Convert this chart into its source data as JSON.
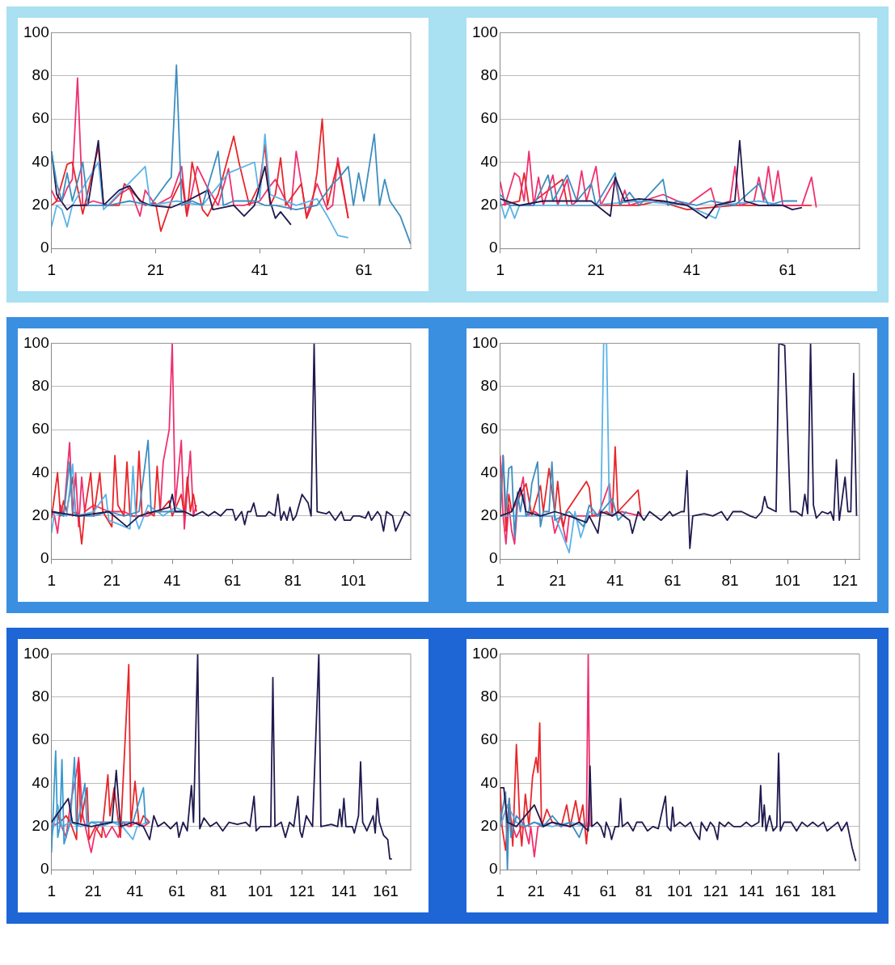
{
  "chart_data": [
    {
      "type": "line",
      "xlim": [
        1,
        70
      ],
      "xticks": [
        1,
        21,
        41,
        61
      ],
      "ylim": [
        0,
        100
      ],
      "yticks": [
        0,
        20,
        40,
        60,
        80,
        100
      ],
      "grid": "y",
      "marker": "none",
      "legend": false,
      "series": [
        {
          "color": "#3d8ebf",
          "x": [
            1,
            2,
            3,
            4,
            5,
            7,
            8,
            12,
            16,
            20,
            23,
            24,
            25,
            26,
            28,
            30,
            33,
            34,
            36,
            40,
            42,
            44,
            48,
            52,
            55,
            56,
            58,
            59,
            60,
            61,
            63,
            64,
            65,
            66,
            68,
            70
          ],
          "values": [
            45,
            30,
            22,
            35,
            22,
            40,
            20,
            20,
            22,
            20,
            30,
            33,
            85,
            20,
            22,
            20,
            45,
            20,
            22,
            22,
            20,
            20,
            18,
            20,
            30,
            32,
            38,
            20,
            35,
            22,
            53,
            20,
            32,
            22,
            15,
            2
          ]
        },
        {
          "color": "#1f1a4f",
          "x": [
            1,
            2,
            4,
            5,
            8,
            10,
            11,
            14,
            16,
            18,
            20,
            24,
            27,
            31,
            32,
            36,
            38,
            40,
            42,
            43,
            44,
            45,
            47
          ],
          "values": [
            45,
            25,
            18,
            20,
            20,
            50,
            20,
            27,
            29,
            22,
            20,
            19,
            22,
            27,
            18,
            20,
            15,
            20,
            38,
            22,
            14,
            17,
            11
          ]
        },
        {
          "color": "#5ab4e8",
          "x": [
            1,
            2,
            3,
            4,
            5,
            10,
            11,
            19,
            20,
            25,
            30,
            35,
            40,
            41,
            42,
            43,
            48,
            52,
            54,
            56,
            58
          ],
          "values": [
            10,
            20,
            18,
            10,
            20,
            40,
            18,
            38,
            20,
            22,
            20,
            35,
            40,
            23,
            53,
            25,
            20,
            23,
            15,
            6,
            5
          ]
        },
        {
          "color": "#e8262a",
          "x": [
            1,
            2,
            4,
            5,
            7,
            10,
            11,
            14,
            15,
            17,
            19,
            21,
            22,
            24,
            26,
            27,
            28,
            30,
            31,
            33,
            36,
            37,
            39,
            41,
            42,
            43,
            44,
            45,
            46,
            49,
            50,
            51,
            52,
            53,
            54,
            56,
            58
          ],
          "values": [
            20,
            22,
            39,
            40,
            16,
            47,
            20,
            20,
            30,
            25,
            20,
            21,
            8,
            22,
            32,
            15,
            40,
            18,
            15,
            25,
            52,
            40,
            20,
            30,
            48,
            20,
            25,
            42,
            20,
            30,
            14,
            20,
            35,
            60,
            20,
            40,
            14
          ]
        },
        {
          "color": "#f0306e",
          "x": [
            1,
            2,
            3,
            4,
            5,
            6,
            7,
            9,
            12,
            14,
            16,
            18,
            19,
            21,
            24,
            26,
            27,
            29,
            31,
            33,
            35,
            36,
            38,
            41,
            43,
            44,
            46,
            47,
            48,
            50,
            52,
            54,
            55,
            56,
            58
          ],
          "values": [
            27,
            22,
            22,
            28,
            32,
            79,
            20,
            22,
            20,
            25,
            28,
            15,
            27,
            20,
            24,
            38,
            15,
            38,
            28,
            20,
            37,
            20,
            20,
            22,
            29,
            32,
            22,
            18,
            45,
            15,
            30,
            18,
            20,
            42,
            14
          ]
        }
      ]
    },
    {
      "type": "line",
      "xlim": [
        1,
        76
      ],
      "xticks": [
        1,
        21,
        41,
        61
      ],
      "ylim": [
        0,
        100
      ],
      "yticks": [
        0,
        20,
        40,
        60,
        80,
        100
      ],
      "grid": "y",
      "marker": "none",
      "legend": false,
      "series": [
        {
          "color": "#1f1a4f",
          "x": [
            1,
            5,
            10,
            20,
            24,
            25,
            27,
            30,
            35,
            40,
            44,
            46,
            50,
            51,
            52,
            55,
            60,
            62,
            64
          ],
          "values": [
            23,
            20,
            22,
            22,
            15,
            33,
            22,
            23,
            22,
            20,
            14,
            20,
            22,
            50,
            22,
            20,
            20,
            18,
            19
          ]
        },
        {
          "color": "#3d8ebf",
          "x": [
            1,
            3,
            8,
            11,
            12,
            15,
            17,
            20,
            21,
            25,
            26,
            28,
            30,
            35,
            36,
            38,
            42,
            45,
            50,
            55,
            57,
            60,
            63
          ],
          "values": [
            25,
            20,
            20,
            34,
            22,
            34,
            22,
            30,
            20,
            35,
            20,
            26,
            20,
            32,
            20,
            22,
            20,
            22,
            20,
            30,
            20,
            22,
            22
          ]
        },
        {
          "color": "#5ab4e8",
          "x": [
            1,
            2,
            3,
            4,
            5,
            10,
            20,
            30,
            40,
            46,
            47,
            55,
            60
          ],
          "values": [
            22,
            14,
            20,
            14,
            20,
            20,
            20,
            22,
            20,
            14,
            20,
            22,
            20
          ]
        },
        {
          "color": "#f0306e",
          "x": [
            1,
            2,
            4,
            5,
            6,
            7,
            8,
            9,
            10,
            12,
            13,
            15,
            16,
            17,
            18,
            19,
            20,
            21,
            22,
            25,
            26,
            27,
            28,
            35,
            40,
            45,
            46,
            49,
            50,
            51,
            54,
            55,
            56,
            57,
            58,
            59,
            60,
            64,
            66,
            67
          ],
          "values": [
            31,
            20,
            35,
            33,
            22,
            45,
            20,
            33,
            20,
            34,
            20,
            32,
            20,
            22,
            36,
            22,
            30,
            38,
            20,
            32,
            20,
            27,
            20,
            25,
            20,
            28,
            20,
            22,
            38,
            20,
            22,
            33,
            22,
            38,
            22,
            36,
            20,
            20,
            33,
            19
          ]
        },
        {
          "color": "#e8262a",
          "x": [
            1,
            5,
            6,
            7,
            14,
            15,
            30,
            34,
            40,
            50,
            60,
            66
          ],
          "values": [
            20,
            22,
            35,
            20,
            32,
            20,
            20,
            22,
            18,
            20,
            20,
            20
          ]
        }
      ]
    },
    {
      "type": "line",
      "xlim": [
        1,
        120
      ],
      "xticks": [
        1,
        21,
        41,
        61,
        81,
        101
      ],
      "ylim": [
        0,
        100
      ],
      "yticks": [
        0,
        20,
        40,
        60,
        80,
        100
      ],
      "grid": "y",
      "marker": "none",
      "legend": false,
      "series": [
        {
          "color": "#1f1a4f",
          "x": [
            1,
            10,
            20,
            26,
            30,
            35,
            40,
            41,
            42,
            45,
            48,
            51,
            53,
            55,
            57,
            59,
            61,
            62,
            64,
            65,
            66,
            67,
            68,
            69,
            72,
            73,
            75,
            76,
            77,
            78,
            79,
            80,
            81,
            82,
            84,
            86,
            87,
            88,
            89,
            92,
            93,
            95,
            97,
            98,
            100,
            101,
            103,
            105,
            106,
            107,
            109,
            110,
            111,
            112,
            114,
            115,
            117,
            118,
            120
          ],
          "values": [
            22,
            20,
            22,
            15,
            20,
            22,
            24,
            30,
            22,
            22,
            20,
            22,
            20,
            22,
            20,
            23,
            23,
            18,
            22,
            16,
            22,
            22,
            26,
            20,
            20,
            22,
            20,
            30,
            18,
            22,
            18,
            24,
            18,
            20,
            30,
            26,
            20,
            100,
            22,
            21,
            22,
            18,
            22,
            18,
            18,
            20,
            20,
            19,
            22,
            18,
            22,
            20,
            13,
            22,
            20,
            13,
            19,
            22,
            20
          ]
        },
        {
          "color": "#3d8ebf",
          "x": [
            1,
            5,
            7,
            8,
            10,
            15,
            20,
            25,
            30,
            33,
            34,
            40,
            45
          ],
          "values": [
            22,
            20,
            45,
            22,
            20,
            20,
            22,
            20,
            22,
            55,
            22,
            22,
            22
          ]
        },
        {
          "color": "#5ab4e8",
          "x": [
            1,
            2,
            6,
            8,
            9,
            15,
            19,
            20,
            27,
            28,
            29,
            30,
            33,
            36,
            38,
            42,
            45
          ],
          "values": [
            12,
            22,
            20,
            44,
            20,
            22,
            30,
            18,
            14,
            43,
            18,
            14,
            25,
            22,
            20,
            24,
            22
          ]
        },
        {
          "color": "#e8262a",
          "x": [
            1,
            3,
            4,
            5,
            6,
            8,
            9,
            10,
            11,
            12,
            14,
            15,
            17,
            18,
            21,
            22,
            23,
            25,
            26,
            27,
            29,
            30,
            31,
            33,
            35,
            36,
            37,
            40,
            41,
            44,
            45,
            46,
            47,
            48,
            49
          ],
          "values": [
            19,
            40,
            20,
            27,
            22,
            38,
            22,
            20,
            7,
            22,
            40,
            20,
            40,
            22,
            15,
            48,
            25,
            20,
            45,
            20,
            20,
            50,
            20,
            22,
            20,
            43,
            22,
            27,
            20,
            30,
            20,
            38,
            22,
            30,
            22
          ]
        },
        {
          "color": "#f0306e",
          "x": [
            1,
            2,
            3,
            4,
            5,
            7,
            8,
            9,
            10,
            11,
            12,
            15,
            20,
            25,
            28,
            33,
            35,
            37,
            38,
            40,
            41,
            42,
            44,
            45,
            46,
            47,
            48,
            49
          ],
          "values": [
            22,
            20,
            12,
            25,
            20,
            54,
            20,
            40,
            15,
            38,
            22,
            25,
            22,
            22,
            20,
            20,
            22,
            22,
            45,
            60,
            100,
            25,
            55,
            14,
            32,
            50,
            20,
            25
          ]
        }
      ]
    },
    {
      "type": "line",
      "xlim": [
        1,
        126
      ],
      "xticks": [
        1,
        21,
        41,
        61,
        81,
        101,
        121
      ],
      "ylim": [
        0,
        100
      ],
      "yticks": [
        0,
        20,
        40,
        60,
        80,
        100
      ],
      "grid": "y",
      "marker": "none",
      "legend": false,
      "series": [
        {
          "color": "#1f1a4f",
          "x": [
            1,
            5,
            8,
            10,
            15,
            20,
            25,
            31,
            32,
            35,
            36,
            40,
            42,
            46,
            47,
            49,
            51,
            53,
            57,
            60,
            61,
            64,
            65,
            66,
            67,
            68,
            72,
            75,
            78,
            80,
            82,
            85,
            88,
            90,
            92,
            93,
            94,
            97,
            98,
            100,
            101,
            102,
            104,
            106,
            107,
            108,
            109,
            110,
            111,
            113,
            115,
            116,
            117,
            118,
            119,
            121,
            122,
            123,
            124,
            125
          ],
          "values": [
            20,
            22,
            33,
            22,
            20,
            22,
            20,
            17,
            20,
            12,
            22,
            20,
            22,
            18,
            12,
            22,
            18,
            22,
            18,
            22,
            20,
            22,
            22,
            41,
            5,
            20,
            21,
            20,
            22,
            18,
            22,
            22,
            20,
            19,
            22,
            29,
            24,
            22,
            100,
            99,
            60,
            22,
            22,
            20,
            30,
            21,
            100,
            25,
            19,
            22,
            21,
            22,
            18,
            46,
            18,
            38,
            22,
            22,
            86,
            20
          ]
        },
        {
          "color": "#3d8ebf",
          "x": [
            1,
            2,
            3,
            4,
            5,
            6,
            7,
            8,
            9,
            10,
            11,
            12,
            13,
            14,
            15,
            16,
            18,
            19,
            20,
            25,
            30,
            32,
            35,
            40,
            42,
            45
          ],
          "values": [
            22,
            48,
            22,
            42,
            43,
            10,
            31,
            22,
            30,
            20,
            22,
            35,
            40,
            45,
            15,
            22,
            22,
            45,
            18,
            22,
            15,
            25,
            20,
            28,
            18,
            22
          ]
        },
        {
          "color": "#5ab4e8",
          "x": [
            1,
            5,
            20,
            23,
            25,
            27,
            29,
            32,
            36,
            37,
            38,
            39,
            41
          ],
          "values": [
            20,
            20,
            20,
            10,
            3,
            22,
            10,
            22,
            20,
            100,
            100,
            22,
            20
          ]
        },
        {
          "color": "#e8262a",
          "x": [
            1,
            2,
            3,
            4,
            5,
            10,
            12,
            15,
            16,
            18,
            20,
            21,
            22,
            23,
            24,
            31,
            32,
            33,
            38,
            40,
            41,
            42,
            49,
            50
          ],
          "values": [
            20,
            48,
            13,
            30,
            22,
            35,
            20,
            34,
            22,
            42,
            22,
            36,
            22,
            15,
            22,
            36,
            33,
            20,
            22,
            20,
            52,
            22,
            32,
            20
          ]
        },
        {
          "color": "#f0306e",
          "x": [
            1,
            2,
            3,
            4,
            5,
            6,
            7,
            9,
            10,
            13,
            15,
            19,
            20,
            22,
            24,
            25,
            35,
            39,
            40,
            43,
            50
          ],
          "values": [
            48,
            20,
            7,
            25,
            13,
            7,
            25,
            38,
            20,
            22,
            20,
            20,
            12,
            20,
            8,
            20,
            20,
            35,
            20,
            22,
            20
          ]
        }
      ]
    },
    {
      "type": "line",
      "xlim": [
        1,
        173
      ],
      "xticks": [
        1,
        21,
        41,
        61,
        81,
        101,
        121,
        141,
        161
      ],
      "ylim": [
        0,
        100
      ],
      "yticks": [
        0,
        20,
        40,
        60,
        80,
        100
      ],
      "grid": "y",
      "marker": "none",
      "legend": false,
      "series": [
        {
          "color": "#1f1a4f",
          "x": [
            1,
            9,
            11,
            20,
            30,
            32,
            34,
            40,
            45,
            48,
            50,
            52,
            55,
            58,
            61,
            62,
            64,
            66,
            68,
            69,
            71,
            72,
            74,
            77,
            80,
            83,
            86,
            90,
            94,
            96,
            98,
            99,
            101,
            103,
            106,
            107,
            108,
            111,
            113,
            115,
            117,
            119,
            120,
            121,
            123,
            126,
            129,
            130,
            135,
            138,
            139,
            140,
            141,
            142,
            145,
            146,
            148,
            149,
            150,
            152,
            155,
            156,
            157,
            158,
            160,
            162,
            163,
            164
          ],
          "values": [
            22,
            33,
            22,
            20,
            22,
            46,
            20,
            22,
            20,
            14,
            25,
            20,
            22,
            19,
            22,
            15,
            22,
            18,
            39,
            22,
            100,
            19,
            24,
            20,
            22,
            18,
            22,
            21,
            22,
            20,
            34,
            18,
            20,
            20,
            20,
            89,
            20,
            22,
            15,
            22,
            20,
            34,
            18,
            15,
            25,
            20,
            100,
            20,
            21,
            20,
            28,
            20,
            33,
            20,
            20,
            17,
            25,
            50,
            22,
            18,
            25,
            17,
            33,
            22,
            16,
            14,
            5,
            5
          ]
        },
        {
          "color": "#3a9ad0",
          "x": [
            1,
            3,
            4,
            5,
            6,
            7,
            10,
            12,
            13,
            17,
            18,
            20,
            30,
            40,
            45,
            46,
            48
          ],
          "values": [
            8,
            55,
            15,
            20,
            51,
            12,
            22,
            52,
            18,
            40,
            20,
            22,
            22,
            22,
            38,
            22,
            22
          ]
        },
        {
          "color": "#5ab4e8",
          "x": [
            1,
            4,
            6,
            10,
            15,
            20,
            25,
            30,
            35,
            40,
            42,
            47
          ],
          "values": [
            15,
            30,
            20,
            22,
            20,
            22,
            20,
            22,
            20,
            14,
            20,
            22
          ]
        },
        {
          "color": "#e8262a",
          "x": [
            1,
            4,
            5,
            8,
            10,
            13,
            14,
            15,
            18,
            19,
            22,
            25,
            28,
            29,
            31,
            34,
            38,
            39,
            41,
            43,
            45,
            48
          ],
          "values": [
            22,
            26,
            22,
            25,
            22,
            14,
            50,
            22,
            38,
            14,
            20,
            15,
            44,
            25,
            38,
            15,
            95,
            20,
            41,
            20,
            25,
            22
          ]
        },
        {
          "color": "#f0306e",
          "x": [
            1,
            5,
            8,
            10,
            13,
            14,
            16,
            20,
            22,
            25,
            27,
            30,
            33,
            35,
            38,
            42,
            45,
            48
          ],
          "values": [
            20,
            22,
            15,
            30,
            45,
            52,
            25,
            8,
            18,
            22,
            15,
            20,
            15,
            22,
            20,
            22,
            20,
            22
          ]
        }
      ]
    },
    {
      "type": "line",
      "xlim": [
        1,
        201
      ],
      "xticks": [
        1,
        21,
        41,
        61,
        81,
        101,
        121,
        141,
        161,
        181
      ],
      "ylim": [
        0,
        100
      ],
      "yticks": [
        0,
        20,
        40,
        60,
        80,
        100
      ],
      "grid": "y",
      "marker": "none",
      "legend": false,
      "series": [
        {
          "color": "#1f1a4f",
          "x": [
            1,
            3,
            5,
            10,
            20,
            25,
            30,
            40,
            45,
            50,
            51,
            52,
            55,
            57,
            59,
            60,
            62,
            63,
            65,
            67,
            68,
            69,
            72,
            75,
            77,
            80,
            83,
            86,
            89,
            93,
            94,
            96,
            97,
            98,
            101,
            104,
            107,
            109,
            112,
            113,
            116,
            118,
            120,
            122,
            123,
            126,
            128,
            131,
            135,
            138,
            141,
            145,
            146,
            147,
            148,
            149,
            151,
            153,
            155,
            156,
            157,
            159,
            163,
            166,
            169,
            172,
            175,
            178,
            181,
            183,
            186,
            189,
            191,
            194,
            195,
            197,
            199
          ],
          "values": [
            38,
            38,
            22,
            20,
            30,
            20,
            22,
            20,
            22,
            18,
            48,
            20,
            22,
            20,
            15,
            22,
            18,
            14,
            20,
            20,
            33,
            20,
            22,
            18,
            22,
            22,
            18,
            20,
            19,
            34,
            20,
            18,
            29,
            20,
            22,
            20,
            22,
            18,
            14,
            22,
            18,
            22,
            20,
            14,
            22,
            20,
            22,
            20,
            20,
            22,
            20,
            22,
            39,
            20,
            30,
            18,
            25,
            18,
            20,
            54,
            18,
            22,
            22,
            18,
            22,
            20,
            22,
            20,
            22,
            18,
            20,
            22,
            18,
            22,
            18,
            10,
            4
          ]
        },
        {
          "color": "#3d8ebf",
          "x": [
            1,
            4,
            5,
            6,
            7,
            10,
            15,
            20,
            25,
            30,
            35,
            40,
            45,
            48
          ],
          "values": [
            22,
            36,
            0,
            33,
            15,
            25,
            20,
            22,
            20,
            25,
            20,
            22,
            15,
            22
          ]
        },
        {
          "color": "#5ab4e8",
          "x": [
            1,
            5,
            10,
            15,
            20,
            30,
            40,
            48
          ],
          "values": [
            20,
            30,
            22,
            20,
            22,
            20,
            22,
            20
          ]
        },
        {
          "color": "#e8262a",
          "x": [
            1,
            2,
            4,
            6,
            8,
            10,
            11,
            12,
            13,
            15,
            17,
            19,
            21,
            22,
            23,
            24,
            27,
            30,
            35,
            38,
            40,
            43,
            45,
            47,
            49,
            50
          ],
          "values": [
            38,
            20,
            9,
            33,
            11,
            58,
            40,
            20,
            11,
            35,
            20,
            43,
            52,
            45,
            68,
            20,
            28,
            22,
            20,
            30,
            20,
            32,
            22,
            30,
            12,
            22
          ]
        },
        {
          "color": "#f0306e",
          "x": [
            1,
            5,
            8,
            10,
            14,
            17,
            18,
            20,
            22,
            30,
            40,
            45,
            49,
            50,
            51
          ],
          "values": [
            20,
            30,
            20,
            15,
            22,
            12,
            20,
            6,
            20,
            22,
            20,
            22,
            20,
            100,
            20
          ]
        }
      ]
    }
  ]
}
